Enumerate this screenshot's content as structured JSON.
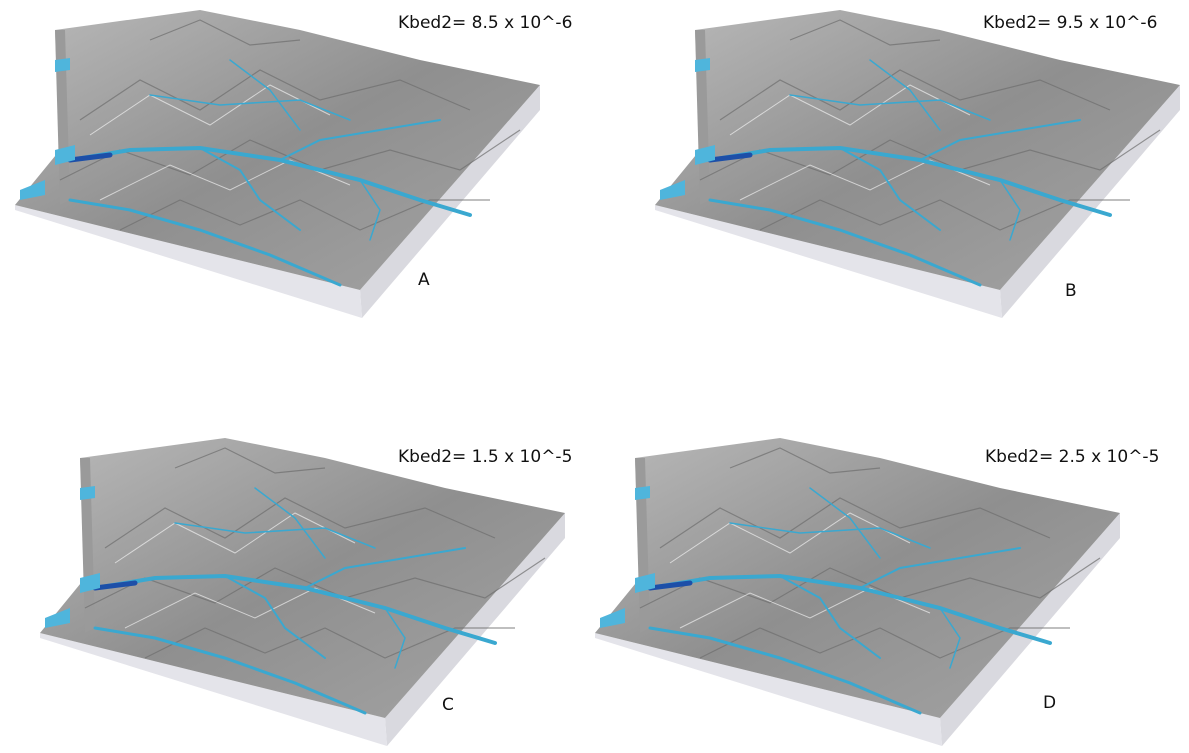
{
  "panels": [
    {
      "caption": "Kbed2= 8.5 x 10^-6",
      "label": "A"
    },
    {
      "caption": "Kbed2= 9.5 x 10^-6",
      "label": "B"
    },
    {
      "caption": "Kbed2= 1.5 x 10^-5",
      "label": "C"
    },
    {
      "caption": "Kbed2= 2.5 x 10^-5",
      "label": "D"
    }
  ]
}
